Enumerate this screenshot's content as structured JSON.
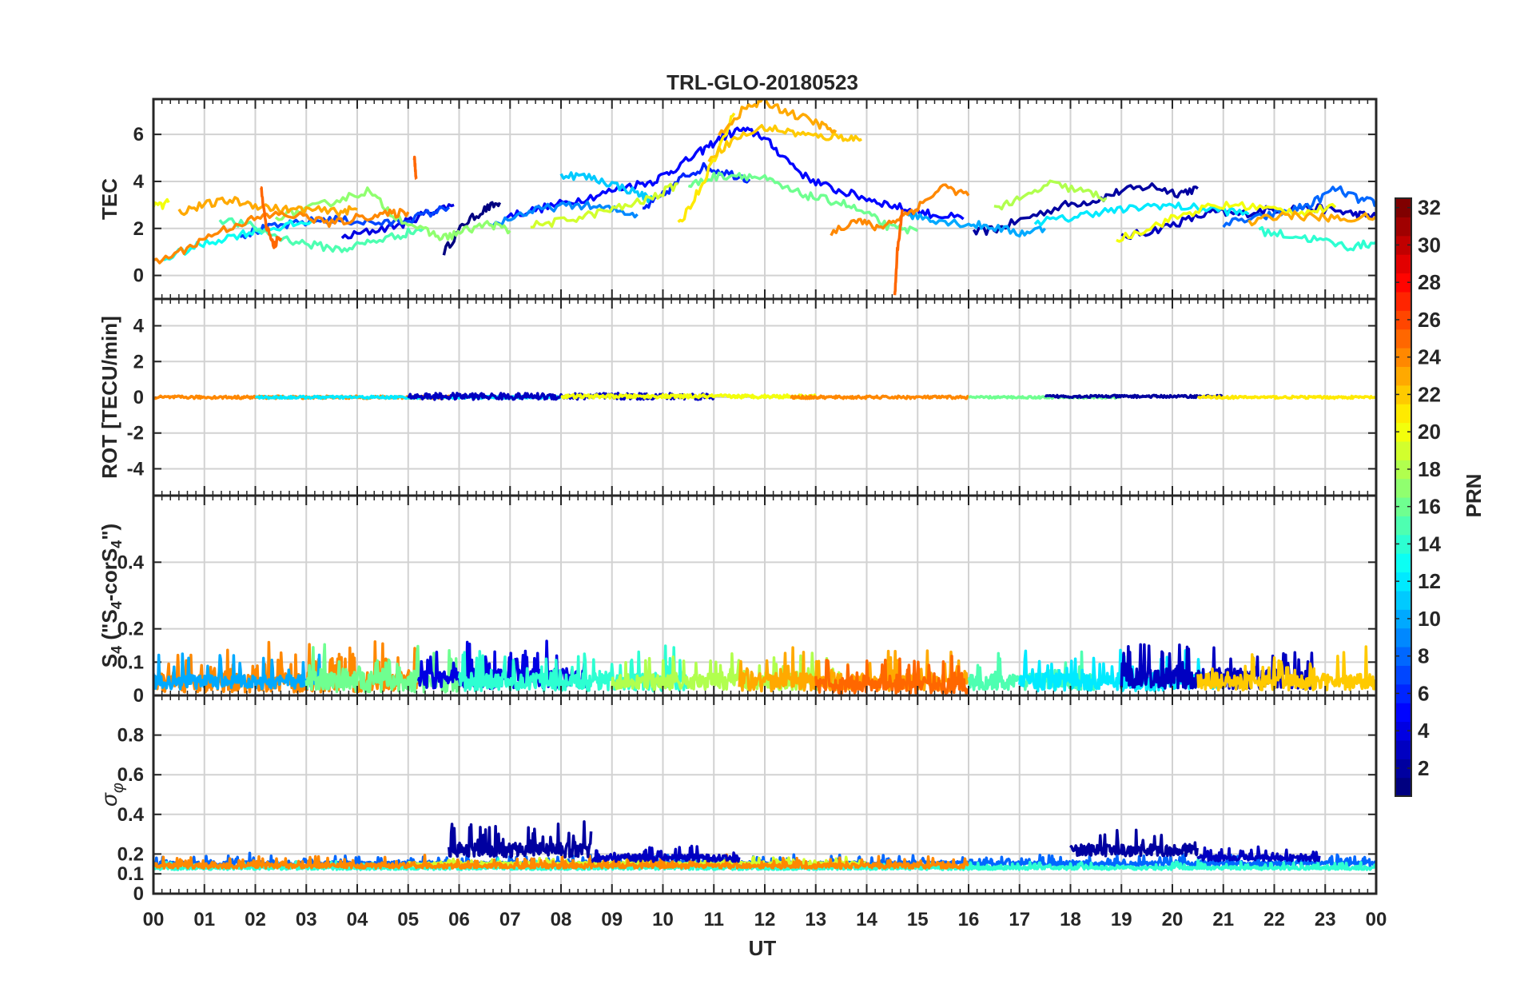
{
  "chart_data": {
    "type": "line",
    "title": "TRL-GLO-20180523",
    "xlabel": "UT",
    "x_ticks": [
      "00",
      "01",
      "02",
      "03",
      "04",
      "05",
      "06",
      "07",
      "08",
      "09",
      "10",
      "11",
      "12",
      "13",
      "14",
      "15",
      "16",
      "17",
      "18",
      "19",
      "20",
      "21",
      "22",
      "23",
      "00"
    ],
    "xlim": [
      0,
      24
    ],
    "grid": true,
    "colorbar": {
      "label": "PRN",
      "range": [
        1,
        32
      ],
      "ticks": [
        "2",
        "4",
        "6",
        "8",
        "10",
        "12",
        "14",
        "16",
        "18",
        "20",
        "22",
        "24",
        "26",
        "28",
        "30",
        "32"
      ],
      "colormap": "jet"
    },
    "panels": [
      {
        "name": "tec",
        "ylabel": "TEC",
        "ylim": [
          -1,
          7.5
        ],
        "y_ticks": [
          {
            "v": 0,
            "t": "0"
          },
          {
            "v": 2,
            "t": "2"
          },
          {
            "v": 4,
            "t": "4"
          },
          {
            "v": 6,
            "t": "6"
          }
        ],
        "series": [
          {
            "prn": 1,
            "x": [
              5.7,
              6.1,
              6.5,
              6.8
            ],
            "y": [
              1.0,
              2.2,
              2.8,
              3.1
            ]
          },
          {
            "prn": 2,
            "x": [
              16.1,
              16.6,
              17.2,
              17.9,
              18.5,
              19.0,
              19.6,
              20.1,
              20.5
            ],
            "y": [
              1.8,
              2.0,
              2.5,
              3.0,
              3.2,
              3.6,
              3.8,
              3.5,
              3.7
            ]
          },
          {
            "prn": 3,
            "x": [
              19.0,
              19.6,
              20.2,
              20.8,
              21.3,
              21.9,
              22.5,
              23.1,
              23.6,
              24.0
            ],
            "y": [
              1.6,
              1.9,
              2.3,
              2.7,
              2.6,
              2.8,
              2.9,
              2.8,
              2.6,
              2.5
            ]
          },
          {
            "prn": 4,
            "x": [
              3.7,
              4.3,
              4.9,
              5.4,
              5.9
            ],
            "y": [
              1.6,
              1.9,
              2.2,
              2.7,
              3.0
            ]
          },
          {
            "prn": 5,
            "x": [
              6.9,
              7.5,
              8.1,
              8.7,
              9.3,
              9.8,
              10.2,
              10.7,
              11.1,
              11.5,
              11.9,
              12.3,
              12.8,
              13.3,
              13.8,
              14.3,
              14.8,
              15.3,
              15.9
            ],
            "y": [
              2.5,
              2.8,
              3.1,
              3.4,
              3.8,
              4.0,
              4.5,
              5.2,
              5.8,
              6.2,
              6.0,
              5.2,
              4.2,
              3.7,
              3.4,
              3.1,
              2.8,
              2.6,
              2.4
            ]
          },
          {
            "prn": 6,
            "x": [
              9.6,
              10.0,
              10.4,
              10.8,
              11.2,
              11.7
            ],
            "y": [
              2.8,
              3.4,
              4.2,
              4.6,
              4.4,
              4.1
            ]
          },
          {
            "prn": 7,
            "x": [
              1.7,
              2.2,
              2.8,
              3.4,
              4.0,
              4.6,
              5.2,
              5.8
            ],
            "y": [
              1.7,
              2.0,
              2.2,
              2.4,
              2.3,
              2.2,
              2.5,
              2.9
            ]
          },
          {
            "prn": 8,
            "x": [
              21.0,
              21.6,
              22.2,
              22.7,
              23.2,
              23.7,
              24.0
            ],
            "y": [
              2.2,
              2.4,
              2.7,
              3.0,
              3.7,
              3.2,
              3.1
            ]
          },
          {
            "prn": 9,
            "x": [
              6.6,
              7.2,
              7.8,
              8.4,
              9.0,
              9.5
            ],
            "y": [
              2.1,
              2.6,
              2.9,
              3.0,
              2.8,
              2.6
            ]
          },
          {
            "prn": 10,
            "x": [
              14.8,
              15.3,
              15.9,
              16.4,
              17.0,
              17.5
            ],
            "y": [
              2.6,
              2.4,
              2.2,
              2.1,
              1.8,
              2.0
            ]
          },
          {
            "prn": 11,
            "x": [
              8.0,
              8.5,
              9.0,
              9.5,
              9.8
            ],
            "y": [
              4.3,
              4.2,
              3.9,
              3.5,
              3.2
            ]
          },
          {
            "prn": 12,
            "x": [
              17.3,
              17.9,
              18.5,
              19.1,
              19.7,
              20.3,
              20.9,
              21.5
            ],
            "y": [
              2.3,
              2.4,
              2.7,
              2.8,
              3.0,
              2.9,
              2.8,
              2.6
            ]
          },
          {
            "prn": 13,
            "x": [
              0.2,
              0.8,
              1.4,
              2.0,
              2.6,
              3.1
            ],
            "y": [
              0.7,
              1.2,
              1.6,
              1.9,
              2.1,
              2.3
            ]
          },
          {
            "prn": 14,
            "x": [
              21.7,
              22.3,
              22.9,
              23.5,
              24.0
            ],
            "y": [
              1.9,
              1.7,
              1.5,
              1.2,
              1.4
            ]
          },
          {
            "prn": 15,
            "x": [
              1.3,
              1.9,
              2.5,
              3.1,
              3.7,
              4.2,
              4.8,
              5.3
            ],
            "y": [
              2.4,
              2.1,
              1.6,
              1.3,
              1.1,
              1.4,
              1.7,
              2.0
            ]
          },
          {
            "prn": 16,
            "x": [
              10.5,
              11.0,
              11.5,
              12.0,
              12.5,
              13.0,
              13.5,
              14.0,
              14.5,
              15.0
            ],
            "y": [
              3.8,
              4.2,
              4.3,
              4.1,
              3.6,
              3.3,
              3.1,
              2.6,
              2.0,
              1.9
            ]
          },
          {
            "prn": 17,
            "x": [
              2.4,
              3.0,
              3.6,
              4.2,
              4.7,
              5.3,
              5.7,
              6.1,
              6.6,
              7.0
            ],
            "y": [
              2.5,
              2.8,
              3.2,
              3.6,
              2.6,
              1.9,
              1.6,
              1.9,
              2.2,
              1.9
            ]
          },
          {
            "prn": 18,
            "x": [
              16.5,
              17.0,
              17.6,
              18.2,
              18.7
            ],
            "y": [
              2.9,
              3.2,
              3.9,
              3.6,
              3.3
            ]
          },
          {
            "prn": 19,
            "x": [
              7.4,
              8.0,
              8.6,
              9.2,
              9.8,
              10.3
            ],
            "y": [
              2.1,
              2.3,
              2.6,
              2.9,
              3.3,
              3.9
            ]
          },
          {
            "prn": 20,
            "x": [
              18.9,
              19.5,
              20.1,
              20.7,
              21.3,
              22.0,
              22.6,
              23.2
            ],
            "y": [
              1.5,
              2.0,
              2.5,
              2.9,
              3.0,
              2.8,
              2.7,
              2.9
            ]
          },
          {
            "prn": 21,
            "x": [
              10.3,
              10.7,
              11.1,
              11.4
            ],
            "y": [
              2.1,
              3.6,
              5.4,
              6.9
            ]
          },
          {
            "prn": 22,
            "x": [
              10.9,
              11.4,
              12.0,
              12.5,
              13.0,
              13.5,
              13.9
            ],
            "y": [
              5.0,
              5.8,
              6.3,
              6.1,
              5.9,
              5.9,
              5.8
            ]
          },
          {
            "prn": 23,
            "x": [
              0.5,
              1.0,
              1.5,
              2.0,
              2.5,
              3.0,
              3.6,
              4.0
            ],
            "y": [
              2.7,
              3.0,
              3.2,
              3.0,
              2.8,
              2.8,
              2.7,
              2.8
            ]
          },
          {
            "prn": 23,
            "x": [
              11.1,
              11.6,
              12.0,
              12.5,
              13.0,
              13.4
            ],
            "y": [
              6.0,
              7.1,
              7.4,
              6.9,
              6.5,
              6.1
            ]
          },
          {
            "prn": 23,
            "x": [
              21.5,
              22.1,
              22.7,
              23.3,
              24.0
            ],
            "y": [
              2.2,
              2.6,
              2.5,
              2.4,
              2.5
            ]
          },
          {
            "prn": 24,
            "x": [
              0.0,
              0.6,
              1.2,
              1.8,
              2.4,
              3.0,
              3.5,
              4.1,
              4.6,
              5.0
            ],
            "y": [
              0.5,
              1.1,
              1.8,
              2.3,
              2.6,
              2.5,
              2.2,
              2.5,
              2.6,
              2.7
            ]
          },
          {
            "prn": 24,
            "x": [
              13.3,
              13.8,
              14.2,
              14.6,
              15.0,
              15.5,
              16.0
            ],
            "y": [
              1.8,
              2.4,
              2.0,
              2.4,
              2.9,
              3.8,
              3.4
            ]
          },
          {
            "prn": 25,
            "x": [
              2.1,
              2.2,
              2.35,
              2.5
            ],
            "y": [
              3.9,
              2.2,
              1.3,
              1.6
            ]
          },
          {
            "prn": 25,
            "x": [
              5.12,
              5.16
            ],
            "y": [
              5.0,
              4.1
            ]
          },
          {
            "prn": 25,
            "x": [
              14.55,
              14.6,
              14.7
            ],
            "y": [
              -1.0,
              1.0,
              2.8
            ]
          },
          {
            "prn": 20,
            "x": [
              0.0,
              0.3
            ],
            "y": [
              2.9,
              3.1
            ]
          }
        ]
      },
      {
        "name": "rot",
        "ylabel": "ROT [TECU/min]",
        "ylim": [
          -5.5,
          5.5
        ],
        "y_ticks": [
          {
            "v": -4,
            "t": "-4"
          },
          {
            "v": -2,
            "t": "-2"
          },
          {
            "v": 0,
            "t": "0"
          },
          {
            "v": 2,
            "t": "2"
          },
          {
            "v": 4,
            "t": "4"
          }
        ],
        "series": [
          {
            "prn": 24,
            "x_range": [
              0.0,
              6.0
            ],
            "level": 0.0,
            "amp": 0.08
          },
          {
            "prn": 12,
            "x_range": [
              2.0,
              8.0
            ],
            "level": 0.0,
            "amp": 0.07
          },
          {
            "prn": 3,
            "x_range": [
              5.0,
              11.0
            ],
            "level": 0.05,
            "amp": 0.18
          },
          {
            "prn": 20,
            "x_range": [
              8.0,
              13.0
            ],
            "level": 0.05,
            "amp": 0.1
          },
          {
            "prn": 24,
            "x_range": [
              12.5,
              16.0
            ],
            "level": 0.0,
            "amp": 0.08
          },
          {
            "prn": 16,
            "x_range": [
              16.0,
              19.0
            ],
            "level": 0.0,
            "amp": 0.06
          },
          {
            "prn": 2,
            "x_range": [
              17.5,
              21.0
            ],
            "level": 0.05,
            "amp": 0.07
          },
          {
            "prn": 21,
            "x_range": [
              20.5,
              24.0
            ],
            "level": 0.0,
            "amp": 0.07
          }
        ]
      },
      {
        "name": "s4",
        "ylabel": "S4 (\"S4-corS4\")",
        "ylim": [
          0,
          0.6
        ],
        "y_ticks": [
          {
            "v": 0,
            "t": "0"
          },
          {
            "v": 0.1,
            "t": "0.1"
          },
          {
            "v": 0.2,
            "t": "0.2"
          },
          {
            "v": 0.4,
            "t": "0.4"
          }
        ],
        "series": [
          {
            "prn": 24,
            "x_range": [
              0.0,
              5.2
            ],
            "base": 0.04,
            "amp": 0.1
          },
          {
            "prn": 10,
            "x_range": [
              0.0,
              3.5
            ],
            "base": 0.04,
            "amp": 0.07
          },
          {
            "prn": 16,
            "x_range": [
              3.0,
              6.0
            ],
            "base": 0.04,
            "amp": 0.1
          },
          {
            "prn": 4,
            "x_range": [
              5.2,
              8.5
            ],
            "base": 0.05,
            "amp": 0.1
          },
          {
            "prn": 14,
            "x_range": [
              6.0,
              10.5
            ],
            "base": 0.04,
            "amp": 0.09
          },
          {
            "prn": 18,
            "x_range": [
              9.0,
              13.5
            ],
            "base": 0.04,
            "amp": 0.08
          },
          {
            "prn": 23,
            "x_range": [
              11.5,
              16.0
            ],
            "base": 0.04,
            "amp": 0.09
          },
          {
            "prn": 25,
            "x_range": [
              13.0,
              16.0
            ],
            "base": 0.03,
            "amp": 0.08
          },
          {
            "prn": 15,
            "x_range": [
              16.0,
              18.5
            ],
            "base": 0.04,
            "amp": 0.08
          },
          {
            "prn": 12,
            "x_range": [
              17.0,
              21.0
            ],
            "base": 0.04,
            "amp": 0.09
          },
          {
            "prn": 3,
            "x_range": [
              19.0,
              22.8
            ],
            "base": 0.05,
            "amp": 0.1
          },
          {
            "prn": 22,
            "x_range": [
              20.5,
              24.0
            ],
            "base": 0.04,
            "amp": 0.08
          }
        ]
      },
      {
        "name": "sigma",
        "ylabel": "σ_φ",
        "ylim": [
          0,
          1.0
        ],
        "y_ticks": [
          {
            "v": 0,
            "t": "0"
          },
          {
            "v": 0.1,
            "t": "0.1"
          },
          {
            "v": 0.2,
            "t": "0.2"
          },
          {
            "v": 0.4,
            "t": "0.4"
          },
          {
            "v": 0.6,
            "t": "0.6"
          },
          {
            "v": 0.8,
            "t": "0.8"
          }
        ],
        "series": [
          {
            "prn": 8,
            "x_range": [
              0.0,
              24.0
            ],
            "base": 0.15,
            "amp": 0.04
          },
          {
            "prn": 14,
            "x_range": [
              0.0,
              24.0
            ],
            "base": 0.13,
            "amp": 0.03
          },
          {
            "prn": 19,
            "x_range": [
              5.0,
              14.0
            ],
            "base": 0.15,
            "amp": 0.03
          },
          {
            "prn": 24,
            "x_range": [
              0.0,
              16.0
            ],
            "base": 0.14,
            "amp": 0.04
          },
          {
            "prn": 2,
            "x_range": [
              5.8,
              8.6
            ],
            "base": 0.22,
            "amp": 0.12
          },
          {
            "prn": 3,
            "x_range": [
              8.6,
              11.5
            ],
            "base": 0.18,
            "amp": 0.06
          },
          {
            "prn": 2,
            "x_range": [
              18.0,
              20.5
            ],
            "base": 0.22,
            "amp": 0.1
          },
          {
            "prn": 3,
            "x_range": [
              20.5,
              22.9
            ],
            "base": 0.18,
            "amp": 0.05
          }
        ]
      }
    ]
  }
}
